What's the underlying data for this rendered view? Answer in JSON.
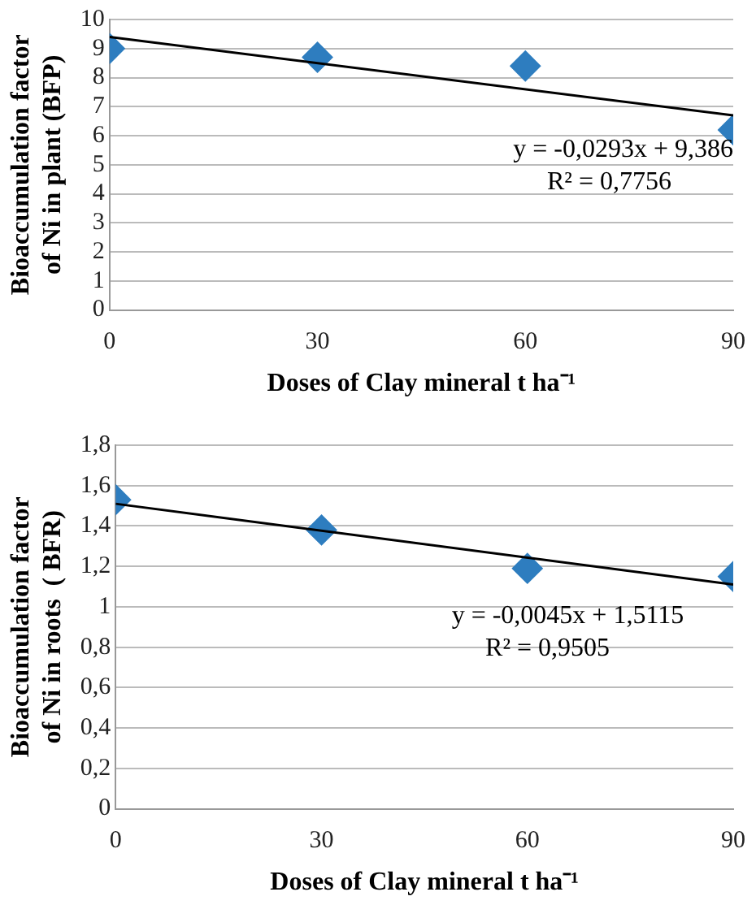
{
  "chart_data": [
    {
      "type": "scatter",
      "xlabel": "Doses of Clay mineral t ha⁻¹",
      "ylabel": "Bioaccumulation factor of Ni in plant (BFP)",
      "xlim": [
        0,
        90
      ],
      "xticks": [
        0,
        30,
        60,
        90
      ],
      "ylim": [
        0,
        10
      ],
      "yticks": [
        0,
        1,
        2,
        3,
        4,
        5,
        6,
        7,
        8,
        9,
        10
      ],
      "grid": "y",
      "legend": false,
      "marker": "diamond",
      "series": [
        {
          "color": "#2e7dbf",
          "x": [
            0,
            30,
            60,
            90
          ],
          "values": [
            9.0,
            8.7,
            8.4,
            6.2
          ]
        },
        {
          "type": "line",
          "color": "#000000",
          "marker": "none",
          "x": [
            0,
            90
          ],
          "values": [
            9.4,
            6.7
          ]
        }
      ],
      "annotations": [
        "y = -0,0293x + 9,386",
        "R² = 0,7756"
      ]
    },
    {
      "type": "scatter",
      "xlabel": "Doses of Clay mineral t ha⁻¹",
      "ylabel": "Bioaccumulation factor of Ni in roots  ( BFR)",
      "xlim": [
        0,
        90
      ],
      "xticks": [
        0,
        30,
        60,
        90
      ],
      "ylim": [
        0,
        1.8
      ],
      "yticks": [
        0,
        {
          "value": 0.2,
          "label": "0,2"
        },
        {
          "value": 0.4,
          "label": "0,4"
        },
        {
          "value": 0.6,
          "label": "0,6"
        },
        {
          "value": 0.8,
          "label": "0,8"
        },
        1,
        {
          "value": 1.2,
          "label": "1,2"
        },
        {
          "value": 1.4,
          "label": "1,4"
        },
        {
          "value": 1.6,
          "label": "1,6"
        },
        {
          "value": 1.8,
          "label": "1,8"
        }
      ],
      "grid": "y",
      "legend": false,
      "marker": "diamond",
      "series": [
        {
          "color": "#2e7dbf",
          "x": [
            0,
            30,
            60,
            90
          ],
          "values": [
            1.53,
            1.38,
            1.19,
            1.15
          ]
        },
        {
          "type": "line",
          "color": "#000000",
          "marker": "none",
          "x": [
            0,
            90
          ],
          "values": [
            1.51,
            1.11
          ]
        }
      ],
      "annotations": [
        "y = -0,0045x + 1,5115",
        "R² = 0,9505"
      ]
    }
  ]
}
